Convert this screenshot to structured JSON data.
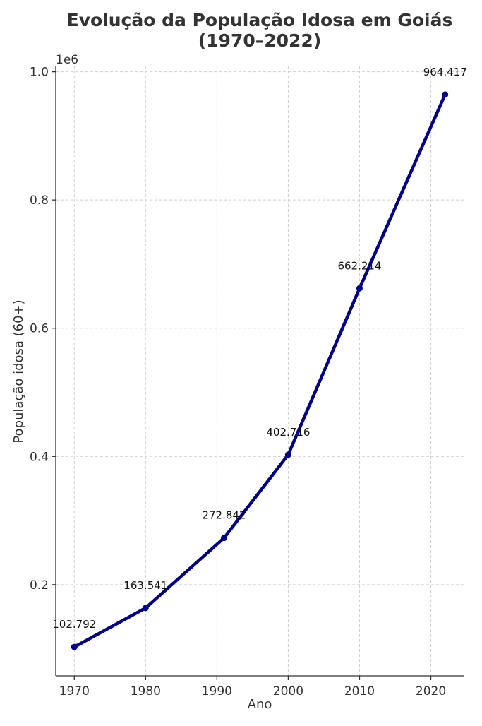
{
  "chart_data": {
    "type": "line",
    "title": [
      "Evolução da População Idosa em Goiás",
      "(1970–2022)"
    ],
    "xlabel": "Ano",
    "ylabel": "População idosa (60+)",
    "y_multiplier_label": "1e6",
    "x": [
      1970,
      1980,
      1991,
      2000,
      2010,
      2022
    ],
    "series": [
      {
        "values": [
          102792,
          163541,
          272842,
          402716,
          662214,
          964417
        ]
      }
    ],
    "data_labels": [
      "102.792",
      "163.541",
      "272.842",
      "402.716",
      "662.214",
      "964.417"
    ],
    "xlim": [
      1967.4,
      2024.6
    ],
    "ylim": [
      57700,
      1009500
    ],
    "x_ticks": [
      1970,
      1980,
      1990,
      2000,
      2010,
      2020
    ],
    "x_tick_labels": [
      "1970",
      "1980",
      "1990",
      "2000",
      "2010",
      "2020"
    ],
    "y_ticks": [
      200000,
      400000,
      600000,
      800000,
      1000000
    ],
    "y_tick_labels": [
      "0.2",
      "0.4",
      "0.6",
      "0.8",
      "1.0"
    ],
    "grid": true,
    "line_color": "#00008b",
    "marker": "circle"
  }
}
